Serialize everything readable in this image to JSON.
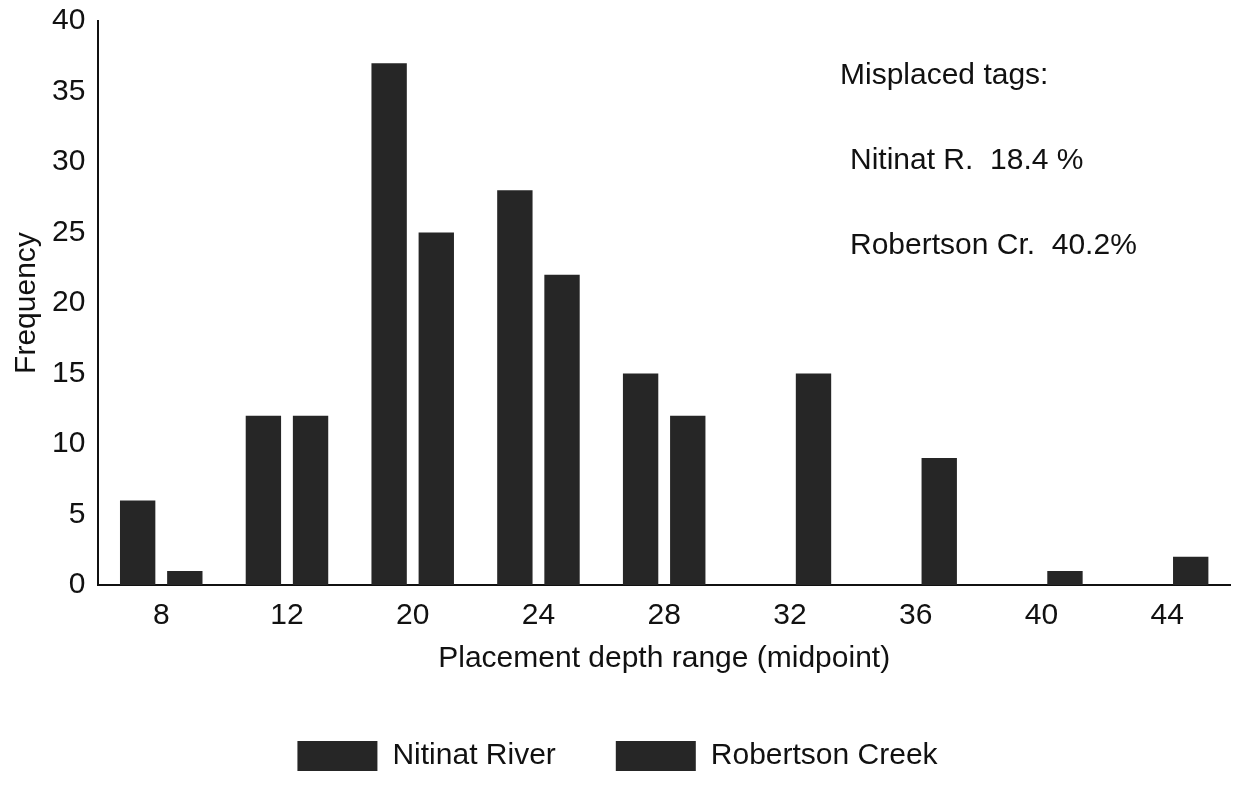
{
  "chart_data": {
    "type": "bar",
    "xlabel": "Placement depth range (midpoint)",
    "ylabel": "Frequency",
    "categories": [
      "8",
      "12",
      "20",
      "24",
      "28",
      "32",
      "36",
      "40",
      "44"
    ],
    "series": [
      {
        "name": "Nitinat River",
        "color": "#262626",
        "values": [
          6,
          12,
          37,
          28,
          15,
          0,
          0,
          0,
          0
        ]
      },
      {
        "name": "Robertson Creek",
        "color": "#262626",
        "values": [
          1,
          12,
          25,
          22,
          12,
          15,
          9,
          1,
          2
        ]
      }
    ],
    "ylim": [
      0,
      40
    ],
    "yticks": [
      0,
      5,
      10,
      15,
      20,
      25,
      30,
      35,
      40
    ],
    "grid": false,
    "legend": "bottom",
    "annotations": [
      "Misplaced tags:",
      "Nitinat R.  18.4 %",
      "Robertson Cr.  40.2%"
    ]
  }
}
